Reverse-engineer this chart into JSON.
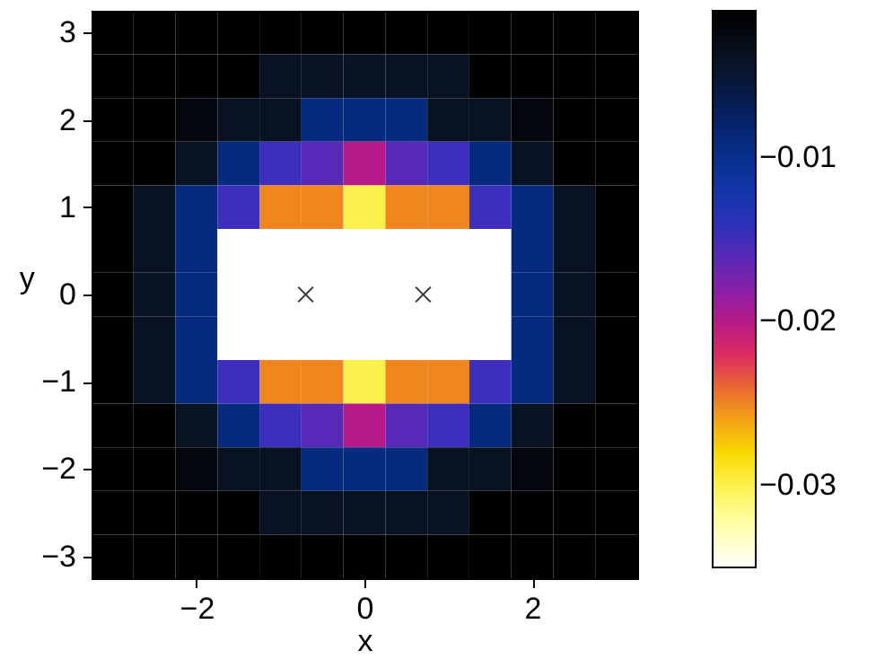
{
  "chart_data": {
    "type": "heatmap",
    "xlabel": "x",
    "ylabel": "y",
    "xlim": [
      -3.25,
      3.25
    ],
    "ylim": [
      -3.25,
      3.25
    ],
    "xticks": [
      -2,
      0,
      2
    ],
    "yticks": [
      -3,
      -2,
      -1,
      0,
      1,
      2,
      3
    ],
    "clim": [
      -0.035,
      -0.001
    ],
    "cticks": [
      -0.01,
      -0.02,
      -0.03
    ],
    "cells": [
      [
        -0.001,
        -0.001,
        -0.001,
        -0.001,
        -0.001,
        -0.001,
        -0.001,
        -0.001,
        -0.001,
        -0.001,
        -0.001,
        -0.001,
        -0.001
      ],
      [
        -0.001,
        -0.001,
        -0.001,
        -0.001,
        -0.004,
        -0.004,
        -0.004,
        -0.004,
        -0.004,
        -0.001,
        -0.001,
        -0.001,
        -0.001
      ],
      [
        -0.001,
        -0.001,
        -0.002,
        -0.004,
        -0.004,
        -0.009,
        -0.009,
        -0.009,
        -0.004,
        -0.004,
        -0.002,
        -0.001,
        -0.001
      ],
      [
        -0.001,
        -0.001,
        -0.004,
        -0.009,
        -0.015,
        -0.016,
        -0.02,
        -0.016,
        -0.015,
        -0.009,
        -0.004,
        -0.001,
        -0.001
      ],
      [
        -0.001,
        -0.004,
        -0.009,
        -0.015,
        -0.025,
        -0.025,
        -0.03,
        -0.025,
        -0.025,
        -0.015,
        -0.009,
        -0.004,
        -0.001
      ],
      [
        -0.001,
        -0.004,
        -0.009,
        -0.035,
        -0.035,
        -0.035,
        -0.035,
        -0.035,
        -0.035,
        -0.035,
        -0.009,
        -0.004,
        -0.001
      ],
      [
        -0.001,
        -0.004,
        -0.009,
        -0.035,
        -0.035,
        -0.035,
        -0.035,
        -0.035,
        -0.035,
        -0.035,
        -0.009,
        -0.004,
        -0.001
      ],
      [
        -0.001,
        -0.004,
        -0.009,
        -0.035,
        -0.035,
        -0.035,
        -0.035,
        -0.035,
        -0.035,
        -0.035,
        -0.009,
        -0.004,
        -0.001
      ],
      [
        -0.001,
        -0.004,
        -0.009,
        -0.015,
        -0.025,
        -0.025,
        -0.03,
        -0.025,
        -0.025,
        -0.015,
        -0.009,
        -0.004,
        -0.001
      ],
      [
        -0.001,
        -0.001,
        -0.004,
        -0.009,
        -0.015,
        -0.016,
        -0.02,
        -0.016,
        -0.015,
        -0.009,
        -0.004,
        -0.001,
        -0.001
      ],
      [
        -0.001,
        -0.001,
        -0.002,
        -0.004,
        -0.004,
        -0.009,
        -0.009,
        -0.009,
        -0.004,
        -0.004,
        -0.002,
        -0.001,
        -0.001
      ],
      [
        -0.001,
        -0.001,
        -0.001,
        -0.001,
        -0.004,
        -0.004,
        -0.004,
        -0.004,
        -0.004,
        -0.001,
        -0.001,
        -0.001,
        -0.001
      ],
      [
        -0.001,
        -0.001,
        -0.001,
        -0.001,
        -0.001,
        -0.001,
        -0.001,
        -0.001,
        -0.001,
        -0.001,
        -0.001,
        -0.001,
        -0.001
      ]
    ],
    "marker": "cross",
    "series": [
      {
        "type": "scatter",
        "x": [
          -0.7,
          0.7
        ],
        "values": [
          0,
          0
        ],
        "color": "#333333"
      }
    ]
  }
}
